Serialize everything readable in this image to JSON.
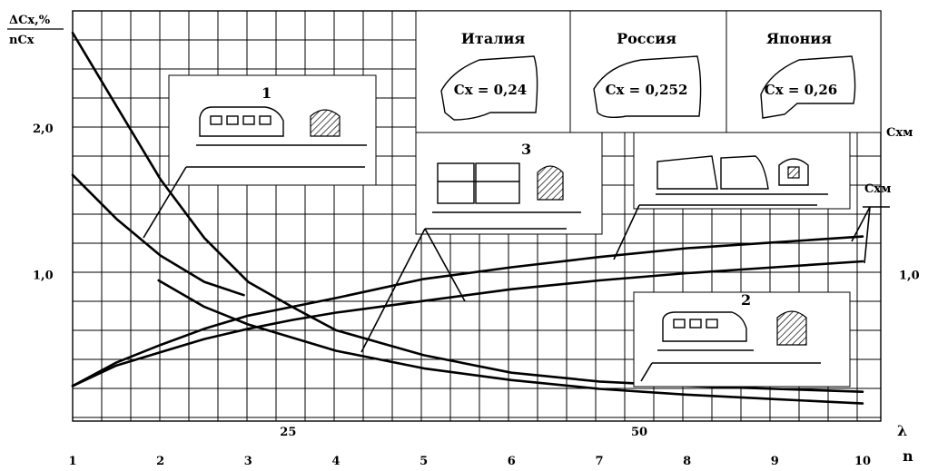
{
  "chart_data": {
    "type": "line",
    "ylabel_top": "ΔCx,%",
    "ylabel_bottom": "nCx",
    "ylabel_right": "Cxм",
    "x_axis_n": {
      "label": "n",
      "ticks": [
        "1",
        "2",
        "3",
        "4",
        "5",
        "6",
        "7",
        "8",
        "9",
        "10"
      ],
      "range": [
        1,
        10
      ]
    },
    "x_axis_lambda": {
      "label": "λ",
      "ticks": [
        {
          "value": 3,
          "label": "25"
        },
        {
          "value": 7,
          "label": "50"
        }
      ]
    },
    "y_ticks_left": [
      {
        "value": 2.0,
        "label": "2,0"
      },
      {
        "value": 1.0,
        "label": "1,0"
      }
    ],
    "y_ticks_right": [
      {
        "value": 1.0,
        "label": "1,0"
      }
    ],
    "ylim": [
      0,
      2.8
    ],
    "series": [
      {
        "x": [
          1,
          1.5,
          2,
          2.5,
          3,
          3.5,
          4,
          5,
          6,
          7,
          8,
          9,
          10
        ],
        "values": [
          2.65,
          2.15,
          1.65,
          1.25,
          0.95,
          0.78,
          0.62,
          0.45,
          0.33,
          0.27,
          0.24,
          0.22,
          0.2
        ]
      },
      {
        "x": [
          1,
          1.5,
          2,
          2.5,
          2.95
        ],
        "values": [
          1.68,
          1.38,
          1.13,
          0.95,
          0.86
        ]
      },
      {
        "x": [
          1.98,
          2.5,
          3,
          3.5,
          4,
          5,
          6,
          7,
          8,
          9,
          10
        ],
        "values": [
          0.96,
          0.78,
          0.66,
          0.57,
          0.48,
          0.36,
          0.28,
          0.22,
          0.18,
          0.15,
          0.12
        ]
      },
      {
        "x": [
          1,
          1.5,
          2,
          2.5,
          3,
          3.5,
          4,
          5,
          6,
          7,
          8,
          9,
          10
        ],
        "values": [
          0.24,
          0.4,
          0.52,
          0.63,
          0.72,
          0.78,
          0.84,
          0.97,
          1.05,
          1.12,
          1.18,
          1.22,
          1.26
        ]
      },
      {
        "x": [
          1,
          1.5,
          2,
          2.5,
          3,
          3.5,
          4,
          5,
          6,
          7,
          8,
          9,
          10
        ],
        "values": [
          0.24,
          0.38,
          0.47,
          0.56,
          0.63,
          0.69,
          0.74,
          0.82,
          0.9,
          0.96,
          1.01,
          1.05,
          1.09
        ]
      }
    ]
  },
  "insets": {
    "italy": {
      "country": "Италия",
      "cx": "Cx = 0,24"
    },
    "russia": {
      "country": "Россия",
      "cx": "Cx = 0,252"
    },
    "japan": {
      "country": "Япония",
      "cx": "Cx = 0,26"
    },
    "label_1": "1",
    "label_2": "2",
    "label_3": "3",
    "label_cxm": "Cxм"
  }
}
